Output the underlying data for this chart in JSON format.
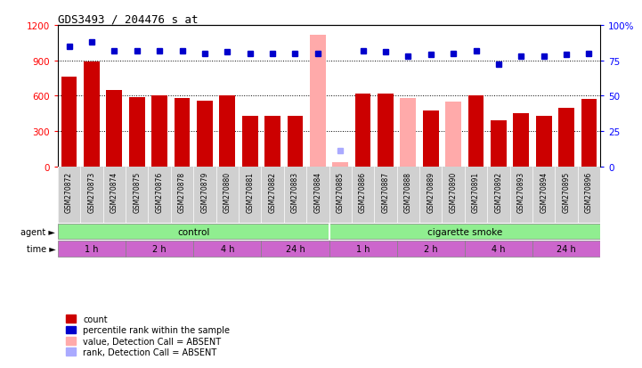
{
  "title": "GDS3493 / 204476_s_at",
  "samples": [
    "GSM270872",
    "GSM270873",
    "GSM270874",
    "GSM270875",
    "GSM270876",
    "GSM270878",
    "GSM270879",
    "GSM270880",
    "GSM270881",
    "GSM270882",
    "GSM270883",
    "GSM270884",
    "GSM270885",
    "GSM270886",
    "GSM270887",
    "GSM270888",
    "GSM270889",
    "GSM270890",
    "GSM270891",
    "GSM270892",
    "GSM270893",
    "GSM270894",
    "GSM270895",
    "GSM270896"
  ],
  "count_values": [
    760,
    890,
    645,
    590,
    600,
    580,
    560,
    600,
    430,
    430,
    430,
    1120,
    35,
    620,
    620,
    580,
    470,
    550,
    600,
    390,
    450,
    430,
    500,
    570
  ],
  "percentile_values": [
    85,
    88,
    82,
    82,
    82,
    82,
    80,
    81,
    80,
    80,
    80,
    80,
    11,
    82,
    81,
    78,
    79,
    80,
    82,
    72,
    78,
    78,
    79,
    80
  ],
  "absent_mask": [
    false,
    false,
    false,
    false,
    false,
    false,
    false,
    false,
    false,
    false,
    false,
    true,
    true,
    false,
    false,
    true,
    false,
    true,
    false,
    false,
    false,
    false,
    false,
    false
  ],
  "absent_rank_mask": [
    false,
    false,
    false,
    false,
    false,
    false,
    false,
    false,
    false,
    false,
    false,
    false,
    true,
    false,
    false,
    false,
    false,
    false,
    false,
    false,
    false,
    false,
    false,
    false
  ],
  "bar_color_present": "#cc0000",
  "bar_color_absent": "#ffaaaa",
  "dot_color_present": "#0000cc",
  "dot_color_absent": "#aaaaff",
  "ylim_left": [
    0,
    1200
  ],
  "ylim_right": [
    0,
    100
  ],
  "yticks_left": [
    0,
    300,
    600,
    900,
    1200
  ],
  "yticks_right": [
    0,
    25,
    50,
    75,
    100
  ],
  "time_groups": [
    {
      "label": "1 h",
      "start": 0,
      "end": 2
    },
    {
      "label": "2 h",
      "start": 3,
      "end": 5
    },
    {
      "label": "4 h",
      "start": 6,
      "end": 8
    },
    {
      "label": "24 h",
      "start": 9,
      "end": 11
    },
    {
      "label": "1 h",
      "start": 12,
      "end": 14
    },
    {
      "label": "2 h",
      "start": 15,
      "end": 17
    },
    {
      "label": "4 h",
      "start": 18,
      "end": 20
    },
    {
      "label": "24 h",
      "start": 21,
      "end": 23
    }
  ],
  "legend_items": [
    {
      "label": "count",
      "color": "#cc0000"
    },
    {
      "label": "percentile rank within the sample",
      "color": "#0000cc"
    },
    {
      "label": "value, Detection Call = ABSENT",
      "color": "#ffaaaa"
    },
    {
      "label": "rank, Detection Call = ABSENT",
      "color": "#aaaaff"
    }
  ],
  "sample_bg": "#d0d0d0",
  "agent_green": "#90ee90",
  "time_purple": "#cc66cc",
  "label_arrow": "►"
}
